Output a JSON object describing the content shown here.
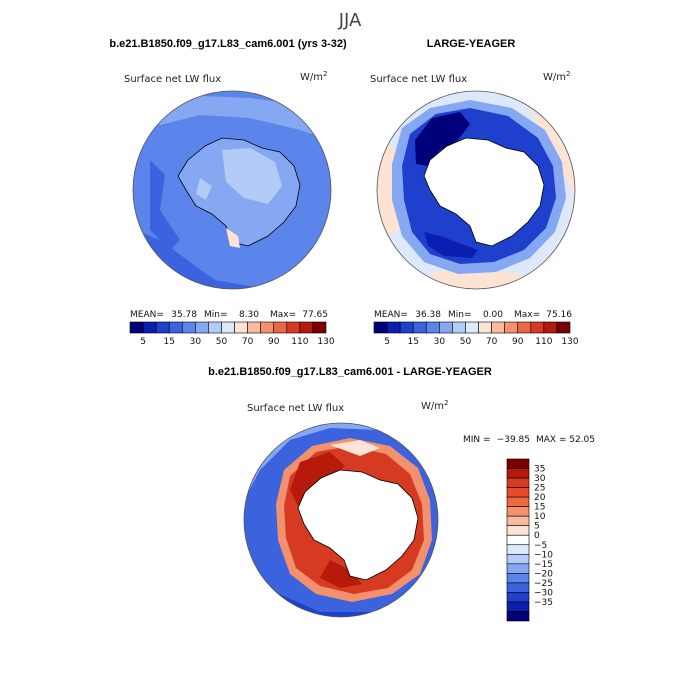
{
  "figure": {
    "season": "JJA"
  },
  "chart_data": [
    {
      "type": "heatmap",
      "panel_title": "b.e21.B1850.f09_g17.L83_cam6.001 (yrs 3-32)",
      "variable": "Surface net LW flux",
      "units": "W/m",
      "units_exp": "2",
      "projection": "south-polar-stereographic",
      "stats": {
        "mean_label": "MEAN=",
        "mean": "35.78",
        "min_label": "Min=",
        "min": "8.30",
        "max_label": "Max=",
        "max": "77.65"
      },
      "colorbar": {
        "orientation": "horizontal",
        "ticks": [
          "5",
          "15",
          "30",
          "50",
          "70",
          "90",
          "110",
          "130"
        ],
        "colors": [
          "#00007a",
          "#0a1fb0",
          "#1e40cc",
          "#3a63dd",
          "#5b85ea",
          "#86a8f2",
          "#b3cbf7",
          "#dde8fb",
          "#fde3d3",
          "#f9bba0",
          "#f3916f",
          "#ea6645",
          "#d63a20",
          "#b51a0a",
          "#7a0000"
        ]
      },
      "palette": {
        "ocean": "#5b85ea",
        "ocean_dark": "#3a63dd",
        "land": "#86a8f2",
        "land_light": "#b3cbf7"
      }
    },
    {
      "type": "heatmap",
      "panel_title": "LARGE-YEAGER",
      "variable": "Surface net LW flux",
      "units": "W/m",
      "units_exp": "2",
      "projection": "south-polar-stereographic",
      "stats": {
        "mean_label": "MEAN=",
        "mean": "36.38",
        "min_label": "Min=",
        "min": "0.00",
        "max_label": "Max=",
        "max": "75.16"
      },
      "colorbar": {
        "orientation": "horizontal",
        "ticks": [
          "5",
          "15",
          "30",
          "50",
          "70",
          "90",
          "110",
          "130"
        ],
        "colors": [
          "#00007a",
          "#0a1fb0",
          "#1e40cc",
          "#3a63dd",
          "#5b85ea",
          "#86a8f2",
          "#b3cbf7",
          "#dde8fb",
          "#fde3d3",
          "#f9bba0",
          "#f3916f",
          "#ea6645",
          "#d63a20",
          "#b51a0a",
          "#7a0000"
        ]
      },
      "palette": {
        "ocean": "#dde8fb",
        "ocean_alt": "#fde3d3",
        "ring": "#1e40cc",
        "ring_dark": "#0a1fb0",
        "land": "#ffffff"
      }
    },
    {
      "type": "heatmap",
      "panel_title": "b.e21.B1850.f09_g17.L83_cam6.001 - LARGE-YEAGER",
      "variable": "Surface net LW flux",
      "units": "W/m",
      "units_exp": "2",
      "projection": "south-polar-stereographic",
      "stats": {
        "min_label": "MIN =",
        "min": "−39.85",
        "max_label": "MAX =",
        "max": "52.05"
      },
      "colorbar": {
        "orientation": "vertical",
        "ticks": [
          "35",
          "30",
          "25",
          "20",
          "15",
          "10",
          "5",
          "0",
          "−5",
          "−10",
          "−15",
          "−20",
          "−25",
          "−30",
          "−35"
        ],
        "colors": [
          "#7a0000",
          "#b51a0a",
          "#d63a20",
          "#ea4a26",
          "#ef6a42",
          "#f3916f",
          "#f9bba0",
          "#fde3d3",
          "#ffffff",
          "#dde8fb",
          "#b3cbf7",
          "#86a8f2",
          "#5b85ea",
          "#3a63dd",
          "#1e40cc",
          "#0a1fb0",
          "#00007a"
        ]
      },
      "palette": {
        "ocean": "#3a63dd",
        "ocean_light": "#86a8f2",
        "ring": "#d63a20",
        "ring_light": "#f3916f",
        "land": "#ffffff"
      }
    }
  ]
}
